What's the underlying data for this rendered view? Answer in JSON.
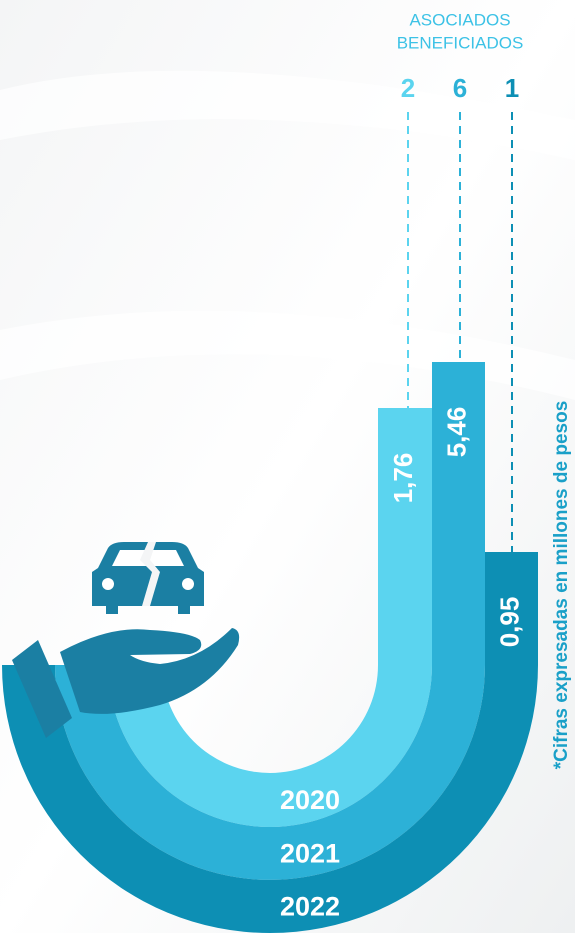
{
  "header": {
    "title_line1": "ASOCIADOS",
    "title_line2": "BENEFICIADOS"
  },
  "years": [
    {
      "year": "2020",
      "amount": "1,76",
      "beneficiaries": "2"
    },
    {
      "year": "2021",
      "amount": "5,46",
      "beneficiaries": "6"
    },
    {
      "year": "2022",
      "amount": "0,95",
      "beneficiaries": "1"
    }
  ],
  "note": "*Cifras expresadas en millones de pesos"
}
